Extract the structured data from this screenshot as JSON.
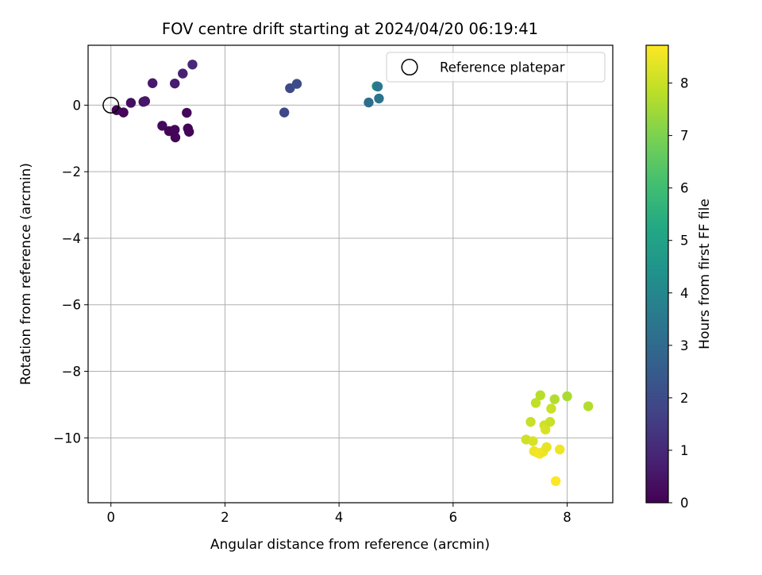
{
  "chart_data": {
    "type": "scatter",
    "title": "FOV centre drift starting at 2024/04/20 06:19:41",
    "xlabel": "Angular distance from reference (arcmin)",
    "ylabel": "Rotation from reference (arcmin)",
    "xlim": [
      -0.4,
      8.8
    ],
    "ylim": [
      -11.95,
      1.8
    ],
    "xticks": [
      0,
      2,
      4,
      6,
      8
    ],
    "yticks": [
      -10,
      -8,
      -6,
      -4,
      -2,
      0
    ],
    "grid": true,
    "legend": {
      "position": "upper right",
      "entries": [
        "Reference platepar"
      ]
    },
    "reference_point": {
      "x": 0,
      "y": 0
    },
    "colorbar": {
      "label": "Hours from first FF file",
      "range": [
        0,
        8.72
      ],
      "ticks": [
        0,
        1,
        2,
        3,
        4,
        5,
        6,
        7,
        8
      ],
      "colormap": "viridis"
    },
    "series": [
      {
        "color_by": "hours",
        "points": [
          {
            "x": 0.1,
            "y": -0.15,
            "hours": 0.05
          },
          {
            "x": 0.22,
            "y": -0.22,
            "hours": 0.15
          },
          {
            "x": 0.35,
            "y": 0.07,
            "hours": 0.3
          },
          {
            "x": 0.57,
            "y": 0.1,
            "hours": 0.45
          },
          {
            "x": 0.6,
            "y": 0.12,
            "hours": 0.55
          },
          {
            "x": 0.73,
            "y": 0.66,
            "hours": 0.6
          },
          {
            "x": 0.9,
            "y": -0.62,
            "hours": 0.2
          },
          {
            "x": 1.02,
            "y": -0.78,
            "hours": 0.1
          },
          {
            "x": 1.12,
            "y": -0.74,
            "hours": 0.12
          },
          {
            "x": 1.13,
            "y": -0.97,
            "hours": 0.08
          },
          {
            "x": 1.12,
            "y": 0.65,
            "hours": 0.7
          },
          {
            "x": 1.26,
            "y": 0.95,
            "hours": 0.8
          },
          {
            "x": 1.33,
            "y": -0.23,
            "hours": 0.15
          },
          {
            "x": 1.35,
            "y": -0.7,
            "hours": 0.1
          },
          {
            "x": 1.37,
            "y": -0.8,
            "hours": 0.1
          },
          {
            "x": 1.43,
            "y": 1.22,
            "hours": 1.0
          },
          {
            "x": 3.04,
            "y": -0.22,
            "hours": 1.9
          },
          {
            "x": 3.14,
            "y": 0.51,
            "hours": 1.95
          },
          {
            "x": 3.26,
            "y": 0.64,
            "hours": 2.0
          },
          {
            "x": 4.52,
            "y": 0.08,
            "hours": 3.1
          },
          {
            "x": 4.66,
            "y": 0.57,
            "hours": 4.7
          },
          {
            "x": 4.68,
            "y": 0.56,
            "hours": 3.5
          },
          {
            "x": 4.7,
            "y": 0.2,
            "hours": 3.3
          },
          {
            "x": 7.28,
            "y": -10.05,
            "hours": 8.1
          },
          {
            "x": 7.36,
            "y": -9.52,
            "hours": 8.0
          },
          {
            "x": 7.4,
            "y": -10.1,
            "hours": 8.2
          },
          {
            "x": 7.42,
            "y": -10.4,
            "hours": 8.5
          },
          {
            "x": 7.45,
            "y": -8.95,
            "hours": 7.9
          },
          {
            "x": 7.48,
            "y": -10.45,
            "hours": 8.5
          },
          {
            "x": 7.52,
            "y": -10.48,
            "hours": 8.6
          },
          {
            "x": 7.53,
            "y": -8.72,
            "hours": 7.8
          },
          {
            "x": 7.58,
            "y": -10.42,
            "hours": 8.5
          },
          {
            "x": 7.6,
            "y": -9.62,
            "hours": 8.1
          },
          {
            "x": 7.62,
            "y": -9.75,
            "hours": 8.2
          },
          {
            "x": 7.64,
            "y": -10.28,
            "hours": 8.4
          },
          {
            "x": 7.7,
            "y": -9.52,
            "hours": 8.0
          },
          {
            "x": 7.72,
            "y": -9.12,
            "hours": 8.0
          },
          {
            "x": 7.78,
            "y": -8.84,
            "hours": 7.7
          },
          {
            "x": 7.8,
            "y": -11.3,
            "hours": 8.7
          },
          {
            "x": 7.87,
            "y": -10.35,
            "hours": 8.5
          },
          {
            "x": 8.0,
            "y": -8.75,
            "hours": 7.6
          },
          {
            "x": 8.37,
            "y": -9.05,
            "hours": 7.7
          }
        ]
      }
    ]
  }
}
